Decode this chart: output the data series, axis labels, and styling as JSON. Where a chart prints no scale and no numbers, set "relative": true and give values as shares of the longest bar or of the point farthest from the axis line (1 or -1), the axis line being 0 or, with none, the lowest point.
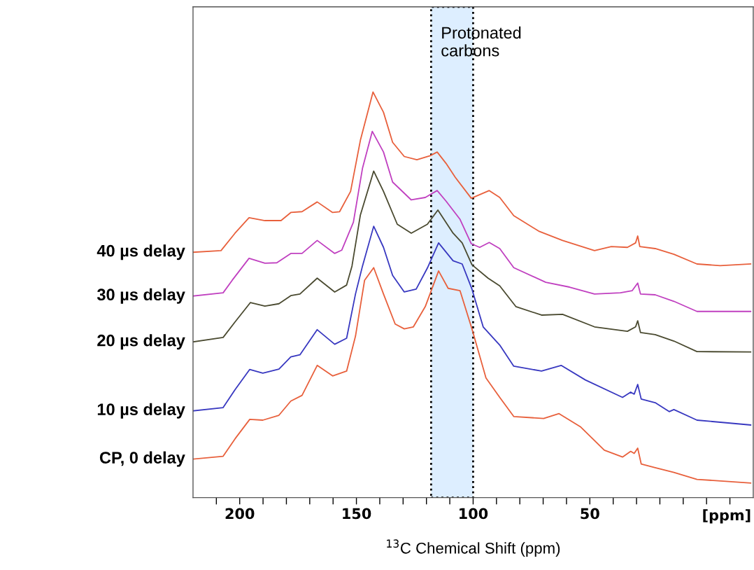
{
  "chart_data": {
    "type": "line",
    "relative": true,
    "xlabel": "$^{13}$C Chemical Shift (ppm)",
    "xlim": [
      220,
      -20
    ],
    "xticks": [
      {
        "value": 210,
        "label": null
      },
      200,
      {
        "value": 190,
        "label": null
      },
      {
        "value": 180,
        "label": null
      },
      {
        "value": 170,
        "label": null
      },
      {
        "value": 160,
        "label": null
      },
      150,
      {
        "value": 140,
        "label": null
      },
      {
        "value": 130,
        "label": null
      },
      {
        "value": 120,
        "label": null
      },
      {
        "value": 110,
        "label": null
      },
      100,
      {
        "value": 90,
        "label": null
      },
      {
        "value": 80,
        "label": null
      },
      {
        "value": 70,
        "label": null
      },
      {
        "value": 60,
        "label": null
      },
      50,
      {
        "value": 40,
        "label": null
      },
      {
        "value": 30,
        "label": null
      },
      {
        "value": 20,
        "label": null
      },
      {
        "value": 10,
        "label": null
      },
      {
        "value": 0,
        "label": null
      },
      {
        "value": -10,
        "label": null
      }
    ],
    "annotations": [
      "[ppm]"
    ],
    "bands": [
      {
        "axis": "x",
        "from": 118,
        "to": 100,
        "label": "Protonated\ncarbons",
        "color": "#ddeeff"
      }
    ],
    "marker": "none",
    "line_style": "solid",
    "series": [
      {
        "name": "40 µs delay",
        "color": "#e8603c",
        "x": [
          219.9,
          208.0,
          202.0,
          196.0,
          189.2,
          182.3,
          178.1,
          173.3,
          166.8,
          160.2,
          157.2,
          152.5,
          148.3,
          142.9,
          138.4,
          134.5,
          129.5,
          124.1,
          118.4,
          115.4,
          111.6,
          107.7,
          100.8,
          93.1,
          88.6,
          82.6,
          71.9,
          61.7,
          48.0,
          40.8,
          33.9,
          30.4,
          29.5,
          28.6,
          22.0,
          14.0,
          4.1,
          -5.8,
          -18.9
        ],
        "values": [
          0.605,
          0.609,
          0.652,
          0.69,
          0.683,
          0.683,
          0.703,
          0.705,
          0.729,
          0.703,
          0.705,
          0.755,
          0.881,
          1.0,
          0.95,
          0.876,
          0.841,
          0.833,
          0.843,
          0.852,
          0.824,
          0.79,
          0.738,
          0.757,
          0.74,
          0.695,
          0.657,
          0.634,
          0.609,
          0.619,
          0.617,
          0.628,
          0.645,
          0.619,
          0.614,
          0.6,
          0.576,
          0.572,
          0.576
        ]
      },
      {
        "name": "30 µs delay",
        "color": "#c040c0",
        "x": [
          219.9,
          207.1,
          203.2,
          196.0,
          189.2,
          184.1,
          178.1,
          173.3,
          166.8,
          159.3,
          156.3,
          151.3,
          147.4,
          143.2,
          138.4,
          134.5,
          126.5,
          120.5,
          115.4,
          111.6,
          105.6,
          100.8,
          97.2,
          93.1,
          88.6,
          82.6,
          68.9,
          58.7,
          48.0,
          36.9,
          31.9,
          29.5,
          28.3,
          22.0,
          14.0,
          4.1,
          -18.9
        ],
        "values": [
          0.497,
          0.505,
          0.536,
          0.59,
          0.578,
          0.579,
          0.602,
          0.602,
          0.634,
          0.602,
          0.61,
          0.679,
          0.812,
          0.903,
          0.852,
          0.778,
          0.734,
          0.74,
          0.757,
          0.731,
          0.686,
          0.626,
          0.617,
          0.629,
          0.614,
          0.567,
          0.531,
          0.519,
          0.502,
          0.505,
          0.51,
          0.529,
          0.502,
          0.5,
          0.484,
          0.459,
          0.459
        ]
      },
      {
        "name": "20 µs delay",
        "color": "#4a4a30",
        "x": [
          219.9,
          207.1,
          202.0,
          195.4,
          189.2,
          183.2,
          178.1,
          174.2,
          166.8,
          159.3,
          154.2,
          151.9,
          148.3,
          142.6,
          138.4,
          132.5,
          126.5,
          119.6,
          115.1,
          108.6,
          104.7,
          100.5,
          93.6,
          88.6,
          81.7,
          70.7,
          61.7,
          48.0,
          33.9,
          30.4,
          29.5,
          28.3,
          22.0,
          14.0,
          4.1,
          -18.9
        ],
        "values": [
          0.384,
          0.395,
          0.433,
          0.481,
          0.472,
          0.478,
          0.498,
          0.502,
          0.541,
          0.507,
          0.524,
          0.571,
          0.697,
          0.805,
          0.755,
          0.674,
          0.652,
          0.674,
          0.709,
          0.652,
          0.628,
          0.574,
          0.541,
          0.522,
          0.471,
          0.45,
          0.452,
          0.421,
          0.41,
          0.421,
          0.436,
          0.407,
          0.402,
          0.386,
          0.36,
          0.359
        ]
      },
      {
        "name": "10 µs delay",
        "color": "#3838c0",
        "x": [
          219.9,
          207.1,
          202.0,
          195.7,
          190.1,
          183.2,
          178.1,
          174.2,
          166.8,
          159.3,
          154.2,
          150.4,
          147.4,
          142.6,
          138.4,
          134.5,
          129.5,
          124.4,
          119.6,
          114.8,
          108.6,
          104.7,
          100.5,
          95.7,
          88.6,
          82.6,
          70.7,
          62.3,
          51.9,
          36.0,
          32.5,
          31.0,
          29.5,
          28.0,
          22.0,
          16.0,
          14.0,
          4.1,
          -18.9
        ],
        "values": [
          0.214,
          0.222,
          0.266,
          0.316,
          0.307,
          0.317,
          0.347,
          0.352,
          0.414,
          0.378,
          0.393,
          0.502,
          0.571,
          0.669,
          0.617,
          0.548,
          0.507,
          0.514,
          0.566,
          0.628,
          0.584,
          0.576,
          0.514,
          0.421,
          0.376,
          0.324,
          0.312,
          0.326,
          0.29,
          0.247,
          0.26,
          0.255,
          0.279,
          0.243,
          0.234,
          0.212,
          0.217,
          0.191,
          0.179
        ]
      },
      {
        "name": "CP, 0 delay",
        "color": "#e8603c",
        "x": [
          219.9,
          207.1,
          202.0,
          195.7,
          190.1,
          183.2,
          178.1,
          173.3,
          166.8,
          160.2,
          154.2,
          150.4,
          146.5,
          142.6,
          138.4,
          133.4,
          129.5,
          125.6,
          120.5,
          114.8,
          110.7,
          105.6,
          100.5,
          94.5,
          88.6,
          82.6,
          69.8,
          63.2,
          53.9,
          43.8,
          36.0,
          32.5,
          31.0,
          29.5,
          28.0,
          22.0,
          14.0,
          4.1,
          -18.9
        ],
        "values": [
          0.095,
          0.102,
          0.145,
          0.193,
          0.191,
          0.203,
          0.238,
          0.252,
          0.326,
          0.3,
          0.312,
          0.398,
          0.536,
          0.567,
          0.502,
          0.428,
          0.416,
          0.421,
          0.471,
          0.559,
          0.516,
          0.51,
          0.416,
          0.295,
          0.247,
          0.2,
          0.195,
          0.207,
          0.174,
          0.117,
          0.1,
          0.114,
          0.109,
          0.122,
          0.083,
          0.074,
          0.062,
          0.045,
          0.036
        ]
      }
    ]
  }
}
